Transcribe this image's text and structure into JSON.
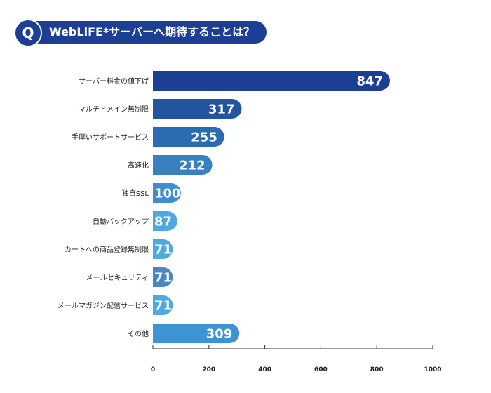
{
  "header": {
    "badge": "Q",
    "title": "WebLiFE*サーバーへ期待することは？"
  },
  "colors": {
    "header": "#1c3f94"
  },
  "chart_data": {
    "type": "bar",
    "orientation": "horizontal",
    "title": "",
    "xlabel": "",
    "ylabel": "",
    "categories": [
      "サーバー料金の値下げ",
      "マルチドメイン無制限",
      "手厚いサポートサービス",
      "高速化",
      "独自SSL",
      "自動バックアップ",
      "カートへの商品登録無制限",
      "メールセキュリティ",
      "メールマガジン配信サービス",
      "その他"
    ],
    "values": [
      847,
      317,
      255,
      212,
      100,
      87,
      71,
      71,
      71,
      309
    ],
    "data_labels": [
      "847",
      "317",
      "255",
      "212",
      "100",
      "87",
      "71",
      "71",
      "71",
      "309"
    ],
    "colors": [
      "#1c3f94",
      "#24539f",
      "#2a6cb2",
      "#3a7fc0",
      "#3f8dd0",
      "#4ea9e1",
      "#4ea9e1",
      "#4a86c2",
      "#4ea9e1",
      "#3d93d3"
    ],
    "xlim": [
      0,
      1000
    ],
    "xticks": [
      0,
      200,
      400,
      600,
      800,
      1000
    ],
    "xtick_labels": [
      "0",
      "200",
      "400",
      "600",
      "800",
      "1000"
    ],
    "grid": false,
    "legend": "none"
  }
}
